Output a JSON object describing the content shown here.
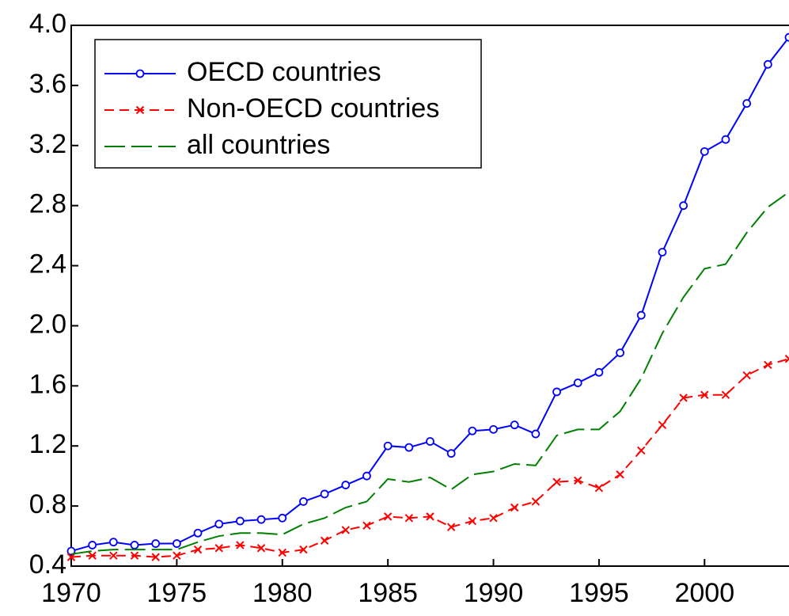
{
  "chart_data": {
    "type": "line",
    "x": [
      1970,
      1971,
      1972,
      1973,
      1974,
      1975,
      1976,
      1977,
      1978,
      1979,
      1980,
      1981,
      1982,
      1983,
      1984,
      1985,
      1986,
      1987,
      1988,
      1989,
      1990,
      1991,
      1992,
      1993,
      1994,
      1995,
      1996,
      1997,
      1998,
      1999,
      2000,
      2001,
      2002,
      2003,
      2004
    ],
    "series": [
      {
        "name": "OECD countries",
        "color": "#0000ff",
        "marker": "circle",
        "dash": "solid",
        "values": [
          0.5,
          0.54,
          0.56,
          0.54,
          0.55,
          0.55,
          0.62,
          0.68,
          0.7,
          0.71,
          0.72,
          0.83,
          0.88,
          0.94,
          1.0,
          1.2,
          1.19,
          1.23,
          1.15,
          1.3,
          1.31,
          1.34,
          1.28,
          1.56,
          1.62,
          1.69,
          1.82,
          2.07,
          2.49,
          2.8,
          3.16,
          3.24,
          3.48,
          3.74,
          3.92
        ]
      },
      {
        "name": "Non-OECD countries",
        "color": "#ff0000",
        "marker": "cross",
        "dash": "short",
        "values": [
          0.46,
          0.47,
          0.47,
          0.47,
          0.46,
          0.47,
          0.51,
          0.52,
          0.54,
          0.52,
          0.49,
          0.51,
          0.57,
          0.64,
          0.67,
          0.73,
          0.72,
          0.73,
          0.66,
          0.7,
          0.72,
          0.79,
          0.83,
          0.96,
          0.97,
          0.92,
          1.01,
          1.17,
          1.34,
          1.52,
          1.54,
          1.54,
          1.67,
          1.74,
          1.78
        ]
      },
      {
        "name": "all countries",
        "color": "#008000",
        "marker": "none",
        "dash": "long",
        "values": [
          0.48,
          0.5,
          0.51,
          0.51,
          0.51,
          0.51,
          0.56,
          0.6,
          0.62,
          0.62,
          0.61,
          0.68,
          0.72,
          0.79,
          0.83,
          0.98,
          0.96,
          0.99,
          0.91,
          1.01,
          1.03,
          1.08,
          1.07,
          1.27,
          1.31,
          1.31,
          1.43,
          1.65,
          1.95,
          2.19,
          2.38,
          2.41,
          2.62,
          2.79,
          2.89
        ]
      }
    ],
    "xlim": [
      1970,
      2004
    ],
    "xticks": [
      1970,
      1975,
      1980,
      1985,
      1990,
      1995,
      2000
    ],
    "ylim": [
      0.4,
      4.0
    ],
    "yticks": [
      0.4,
      0.8,
      1.2,
      1.6,
      {
        "value": 2.0,
        "label": "2.0"
      },
      2.4,
      2.8,
      3.2,
      3.6,
      {
        "value": 4.0,
        "label": "4.0"
      }
    ],
    "legend": "upper left"
  }
}
